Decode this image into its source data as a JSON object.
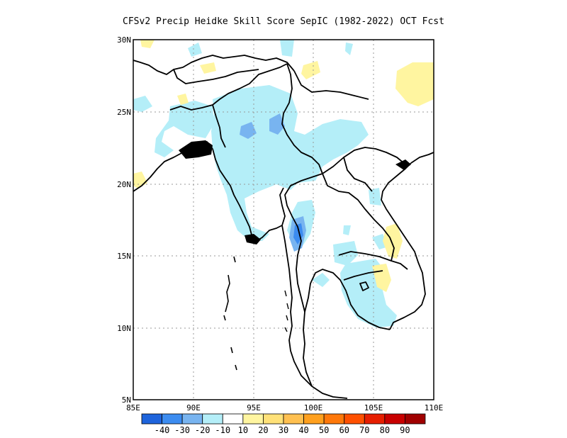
{
  "title": "CFSv2 Precip Heidke Skill Score SepIC (1982-2022) OCT Fcst",
  "axes": {
    "lon_ticks": [
      "85E",
      "90E",
      "95E",
      "100E",
      "105E",
      "110E"
    ],
    "lat_ticks": [
      "30N",
      "25N",
      "20N",
      "15N",
      "10N",
      "5N"
    ],
    "lon_range": [
      85,
      110
    ],
    "lat_range": [
      5,
      30
    ],
    "grid": "dotted"
  },
  "colorbar": {
    "colors": [
      "#1e64dc",
      "#3c8cf0",
      "#78b4f0",
      "#b4eef8",
      "#ffffff",
      "#fff5a0",
      "#ffe178",
      "#ffc050",
      "#ffa01e",
      "#ff780a",
      "#ff5000",
      "#e61e00",
      "#c80000",
      "#a00000"
    ],
    "labels": [
      "-40",
      "-30",
      "-20",
      "-10",
      "10",
      "20",
      "30",
      "40",
      "50",
      "60",
      "70",
      "80",
      "90"
    ]
  },
  "chart_data": {
    "type": "heatmap",
    "title": "CFSv2 Precip Heidke Skill Score SepIC (1982-2022) OCT Fcst",
    "x_ticks": [
      "85E",
      "90E",
      "95E",
      "100E",
      "105E",
      "110E"
    ],
    "y_ticks": [
      "30N",
      "25N",
      "20N",
      "15N",
      "10N",
      "5N"
    ],
    "xlim": [
      85,
      110
    ],
    "ylim": [
      5,
      30
    ],
    "color_scale_labels": [
      "-40",
      "-30",
      "-20",
      "-10",
      "10",
      "20",
      "30",
      "40",
      "50",
      "60",
      "70",
      "80",
      "90"
    ],
    "regions": [
      {
        "value": -15,
        "color": "#b4eef8",
        "desc": "light blue patches over Myanmar, Bangladesh, NE India, Thailand, Cambodia"
      },
      {
        "value": -25,
        "color": "#78b4f0",
        "desc": "medium blue near 24N 94E and 96E, and 16N 99E"
      },
      {
        "value": -35,
        "color": "#3c8cf0",
        "desc": "darker blue near 16N 99E"
      },
      {
        "value": 15,
        "color": "#fff5a0",
        "desc": "light yellow patches near 28N 108E, 27N 100E, 30N 86E, 20N 85E, 15N 106E, 13N 105E"
      }
    ]
  }
}
